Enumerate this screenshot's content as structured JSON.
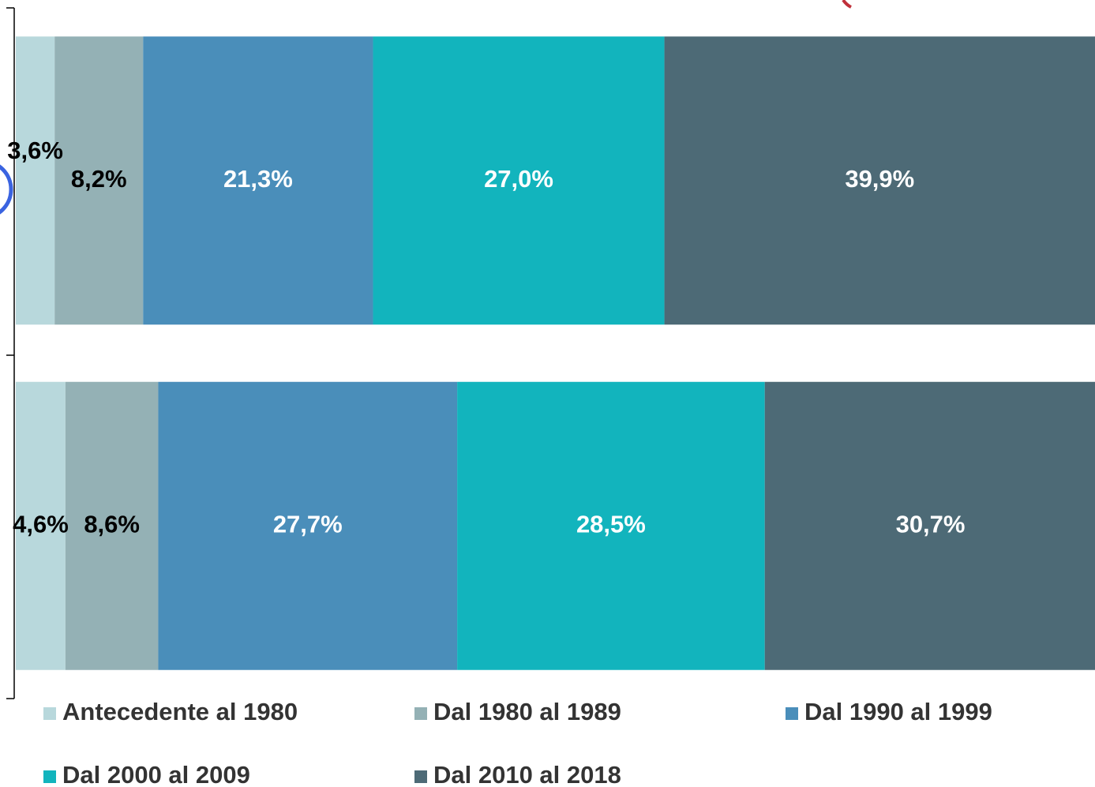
{
  "chart_data": {
    "type": "stacked-barh",
    "categories": [
      null,
      null
    ],
    "xlim": [
      0,
      100
    ],
    "legend": "bottom",
    "series": [
      {
        "name": "Antecedente al 1980",
        "color": "#b8d8dc",
        "label_color": "#000000",
        "values": [
          3.6,
          4.6
        ],
        "value_labels": [
          "3,6%",
          "4,6%"
        ]
      },
      {
        "name": "Dal 1980 al 1989",
        "color": "#94b1b5",
        "label_color": "#000000",
        "values": [
          8.2,
          8.6
        ],
        "value_labels": [
          "8,2%",
          "8,6%"
        ]
      },
      {
        "name": "Dal 1990 al 1999",
        "color": "#4a8eba",
        "label_color": "#ffffff",
        "values": [
          21.3,
          27.7
        ],
        "value_labels": [
          "21,3%",
          "27,7%"
        ]
      },
      {
        "name": "Dal 2000 al 2009",
        "color": "#12b4bd",
        "label_color": "#ffffff",
        "values": [
          27.0,
          28.5
        ],
        "value_labels": [
          "27,0%",
          "28,5%"
        ]
      },
      {
        "name": "Dal 2010 al 2018",
        "color": "#4d6a76",
        "label_color": "#ffffff",
        "values": [
          39.9,
          30.7
        ],
        "value_labels": [
          "39,9%",
          "30,7%"
        ]
      }
    ]
  }
}
